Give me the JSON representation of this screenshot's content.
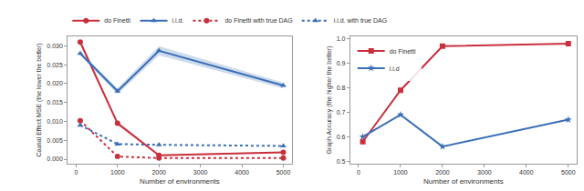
{
  "chart_data": [
    {
      "type": "line",
      "x_label": "Number of environments",
      "y_label": "Causal Effect MSE (the lower the better)",
      "x": [
        100,
        1000,
        2000,
        5000
      ],
      "series": [
        {
          "name": "do Finetti",
          "color": "#c9303e",
          "marker": "circle",
          "line_style": "solid",
          "values": [
            0.031,
            0.0095,
            0.001,
            0.0018
          ],
          "error": [
            0.0006,
            0.0005,
            0.0002,
            0.0002
          ]
        },
        {
          "name": "i.i.d.",
          "color": "#3b6fb6",
          "marker": "triangle-up",
          "line_style": "solid",
          "values": [
            0.028,
            0.018,
            0.0287,
            0.0195
          ],
          "error": [
            0.0005,
            0.0008,
            0.0012,
            0.0008
          ]
        },
        {
          "name": "do Finetti with true DAG",
          "color": "#c9303e",
          "marker": "circle",
          "line_style": "dot",
          "values": [
            0.0102,
            0.0007,
            0.0003,
            0.0003
          ]
        },
        {
          "name": "i.i.d. with true DAG",
          "color": "#3b6fb6",
          "marker": "triangle-up",
          "line_style": "dot",
          "values": [
            0.009,
            0.004,
            0.0038,
            0.0035
          ]
        }
      ],
      "xlim": [
        -200,
        5200
      ],
      "xticks": [
        0,
        1000,
        2000,
        3000,
        4000,
        5000
      ],
      "ylim": [
        -0.0012,
        0.0325
      ],
      "yticks": [
        {
          "value": 0,
          "label": "0.000"
        },
        {
          "value": 0.005,
          "label": "0.005"
        },
        {
          "value": 0.01,
          "label": "0.010"
        },
        {
          "value": 0.015,
          "label": "0.015"
        },
        {
          "value": 0.02,
          "label": "0.020"
        },
        {
          "value": 0.025,
          "label": "0.025"
        },
        {
          "value": 0.03,
          "label": "0.030"
        }
      ],
      "grid": false,
      "legend": "top"
    },
    {
      "type": "line",
      "x_label": "Number of environments",
      "y_label": "Graph Accuracy (the higher the better)",
      "x": [
        100,
        1000,
        2000,
        5000
      ],
      "series": [
        {
          "name": "do Finetti",
          "color": "#c9303e",
          "marker": "square",
          "line_style": "solid",
          "values": [
            0.58,
            0.79,
            0.97,
            0.98
          ]
        },
        {
          "name": "i.i.d",
          "color": "#3b6fb6",
          "marker": "star",
          "line_style": "solid",
          "values": [
            0.6,
            0.69,
            0.56,
            0.67
          ]
        }
      ],
      "xlim": [
        -200,
        5200
      ],
      "xticks": [
        0,
        1000,
        2000,
        3000,
        4000,
        5000
      ],
      "ylim": [
        0.49,
        1.01
      ],
      "yticks": [
        0.5,
        0.6,
        0.7,
        0.8,
        0.9,
        {
          "value": 1,
          "label": "1.0"
        }
      ],
      "grid": false,
      "legend": "upper left"
    }
  ]
}
